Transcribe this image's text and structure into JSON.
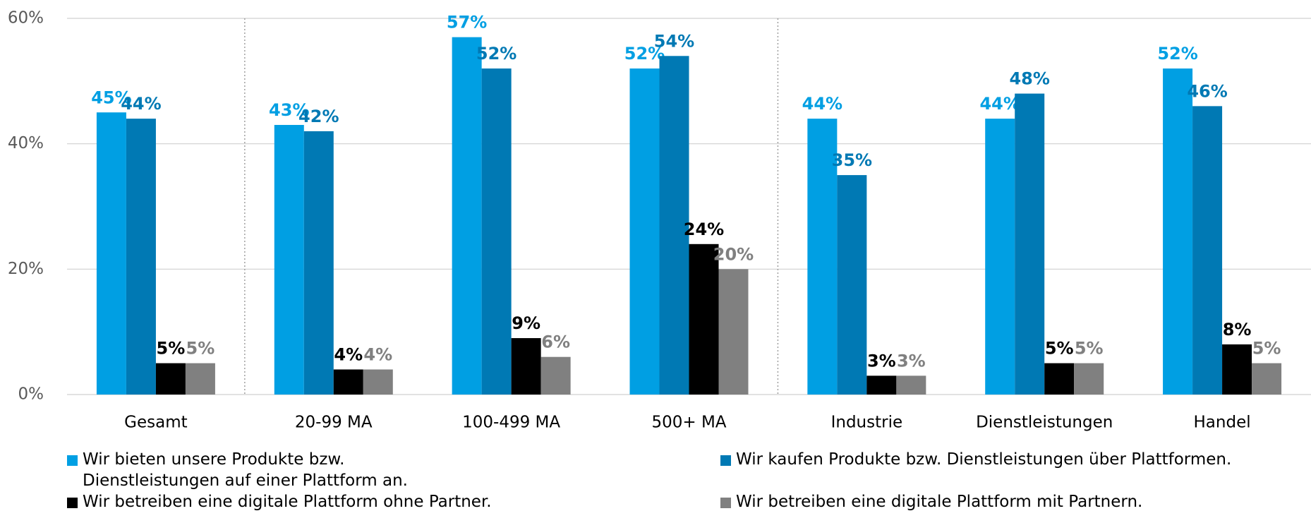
{
  "chart_data": {
    "type": "bar",
    "categories": [
      "Gesamt",
      "20-99 MA",
      "100-499 MA",
      "500+ MA",
      "Industrie",
      "Dienstleistungen",
      "Handel"
    ],
    "series": [
      {
        "name": "Wir bieten unsere Produkte bzw. Dienstleistungen auf einer Plattform an.",
        "color": "#009fe3",
        "values": [
          45,
          43,
          57,
          52,
          44,
          44,
          52
        ],
        "value_labels": [
          "45%",
          "43%",
          "57%",
          "52%",
          "44%",
          "44%",
          "52%"
        ]
      },
      {
        "name": "Wir kaufen Produkte bzw. Dienstleistungen über Plattformen.",
        "color": "#0079b4",
        "values": [
          44,
          42,
          52,
          54,
          35,
          48,
          46
        ],
        "value_labels": [
          "44%",
          "42%",
          "52%",
          "54%",
          "35%",
          "48%",
          "46%"
        ]
      },
      {
        "name": "Wir betreiben eine digitale Plattform ohne Partner.",
        "color": "#000000",
        "values": [
          5,
          4,
          9,
          24,
          3,
          5,
          8
        ],
        "value_labels": [
          "5%",
          "4%",
          "9%",
          "24%",
          "3%",
          "5%",
          "8%"
        ]
      },
      {
        "name": "Wir betreiben eine digitale Plattform mit Partnern.",
        "color": "#808080",
        "values": [
          5,
          4,
          6,
          20,
          3,
          5,
          5
        ],
        "value_labels": [
          "5%",
          "4%",
          "6%",
          "20%",
          "3%",
          "5%",
          "5%"
        ]
      }
    ],
    "ylim": [
      0,
      60
    ],
    "yticks": [
      {
        "value": 0,
        "label": "0%"
      },
      {
        "value": 20,
        "label": "20%"
      },
      {
        "value": 40,
        "label": "40%"
      },
      {
        "value": 60,
        "label": "60%"
      }
    ],
    "grid": true
  }
}
